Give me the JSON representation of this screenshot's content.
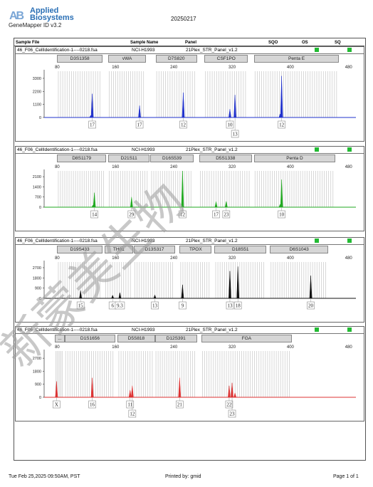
{
  "header": {
    "logo_line1": "Applied",
    "logo_line2": "Biosystems",
    "logo_mark": "AB",
    "app_name": "GeneMapper ID v3.2",
    "date": "20250217"
  },
  "columns": {
    "sample_file": "Sample File",
    "sample_name": "Sample Name",
    "panel": "Panel",
    "sqo": "SQO",
    "os": "OS",
    "sq": "SQ"
  },
  "info_rows": [
    {
      "file": "46_F06_CellIdentification-1----0218.fsa",
      "name": "NCI-H1993",
      "panel": "21Plex_STR_Panel_v1.2"
    },
    {
      "file": "46_F06_CellIdentification-1----0218.fsa",
      "name": "NCI-H1993",
      "panel": "21Plex_STR_Panel_v1.2"
    },
    {
      "file": "46_F06_CellIdentification-1----0218.fsa",
      "name": "NCI-H1993",
      "panel": "21Plex_STR_Panel_v1.2"
    },
    {
      "file": "46_F06_CellIdentification-1----0218.fsa",
      "name": "NCI-H1993",
      "panel": "21Plex_STR_Panel_v1.2"
    }
  ],
  "status_color": "#22bb33",
  "panels": [
    {
      "color": "#2233cc",
      "x_ticks": [
        "80",
        "160",
        "240",
        "320",
        "400",
        "480"
      ],
      "y_ticks": [
        "3300",
        "2200",
        "1100",
        "0"
      ],
      "ymax": 3900,
      "markers": [
        {
          "label": "D3S1358",
          "start": 80,
          "end": 140
        },
        {
          "label": "vWA",
          "start": 150,
          "end": 200
        },
        {
          "label": "D7S820",
          "start": 215,
          "end": 270
        },
        {
          "label": "CSF1PO",
          "start": 282,
          "end": 340
        },
        {
          "label": "Penta E",
          "start": 350,
          "end": 465
        }
      ],
      "peaks": [
        {
          "x": 128,
          "h": 2000
        },
        {
          "x": 126,
          "h": 180
        },
        {
          "x": 193,
          "h": 1000
        },
        {
          "x": 253,
          "h": 2100
        },
        {
          "x": 317,
          "h": 700
        },
        {
          "x": 324,
          "h": 1900
        },
        {
          "x": 388,
          "h": 3500
        },
        {
          "x": 386,
          "h": 300
        }
      ],
      "calls": [
        {
          "label": "17",
          "x": 128,
          "row": 0
        },
        {
          "label": "17",
          "x": 193,
          "row": 0
        },
        {
          "label": "12",
          "x": 253,
          "row": 0
        },
        {
          "label": "10",
          "x": 317,
          "row": 0
        },
        {
          "label": "13",
          "x": 324,
          "row": 1
        },
        {
          "label": "12",
          "x": 388,
          "row": 0
        }
      ]
    },
    {
      "color": "#22aa22",
      "x_ticks": [
        "80",
        "160",
        "240",
        "320",
        "400",
        "480"
      ],
      "y_ticks": [
        "2100",
        "1400",
        "700",
        "0"
      ],
      "ymax": 2500,
      "markers": [
        {
          "label": "D8S1179",
          "start": 80,
          "end": 145
        },
        {
          "label": "D21S11",
          "start": 150,
          "end": 205
        },
        {
          "label": "D16S539",
          "start": 208,
          "end": 265
        },
        {
          "label": "D5S1338",
          "start": 275,
          "end": 345
        },
        {
          "label": "Penta D",
          "start": 350,
          "end": 460
        }
      ],
      "peaks": [
        {
          "x": 131,
          "h": 1000
        },
        {
          "x": 129,
          "h": 150
        },
        {
          "x": 182,
          "h": 700
        },
        {
          "x": 252,
          "h": 2500
        },
        {
          "x": 298,
          "h": 380
        },
        {
          "x": 312,
          "h": 400
        },
        {
          "x": 388,
          "h": 1900
        },
        {
          "x": 386,
          "h": 200
        }
      ],
      "calls": [
        {
          "label": "14",
          "x": 131,
          "row": 0
        },
        {
          "label": "29",
          "x": 182,
          "row": 0
        },
        {
          "label": "12",
          "x": 252,
          "row": 0
        },
        {
          "label": "17",
          "x": 298,
          "row": 0
        },
        {
          "label": "23",
          "x": 312,
          "row": 0
        },
        {
          "label": "10",
          "x": 388,
          "row": 0
        }
      ]
    },
    {
      "color": "#111111",
      "x_ticks": [
        "80",
        "160",
        "240",
        "320",
        "400",
        "480"
      ],
      "y_ticks": [
        "2700",
        "1800",
        "900",
        "0"
      ],
      "ymax": 3200,
      "markers": [
        {
          "label": "D19S433",
          "start": 80,
          "end": 140
        },
        {
          "label": "TH01",
          "start": 145,
          "end": 182
        },
        {
          "label": "D13S317",
          "start": 185,
          "end": 240
        },
        {
          "label": "TPOX",
          "start": 248,
          "end": 290
        },
        {
          "label": "D18S51",
          "start": 296,
          "end": 365
        },
        {
          "label": "D6S1043",
          "start": 372,
          "end": 450
        }
      ],
      "peaks": [
        {
          "x": 112,
          "h": 680
        },
        {
          "x": 156,
          "h": 280
        },
        {
          "x": 166,
          "h": 500
        },
        {
          "x": 214,
          "h": 300
        },
        {
          "x": 252,
          "h": 1200
        },
        {
          "x": 317,
          "h": 2400
        },
        {
          "x": 328,
          "h": 2800
        },
        {
          "x": 428,
          "h": 2000
        }
      ],
      "calls": [
        {
          "label": "15",
          "x": 112,
          "row": 0
        },
        {
          "label": "6",
          "x": 156,
          "row": 0
        },
        {
          "label": "9.3",
          "x": 166,
          "row": 0
        },
        {
          "label": "13",
          "x": 214,
          "row": 0
        },
        {
          "label": "9",
          "x": 252,
          "row": 0
        },
        {
          "label": "13",
          "x": 317,
          "row": 0
        },
        {
          "label": "18",
          "x": 328,
          "row": 0
        },
        {
          "label": "20",
          "x": 428,
          "row": 0
        }
      ]
    },
    {
      "color": "#dd3333",
      "x_ticks": [
        "80",
        "160",
        "240",
        "320",
        "400",
        "480"
      ],
      "y_ticks": [
        "2700",
        "1800",
        "900",
        "0"
      ],
      "ymax": 3200,
      "markers": [
        {
          "label": "...",
          "start": 77,
          "end": 88
        },
        {
          "label": "D1S1656",
          "start": 90,
          "end": 158
        },
        {
          "label": "D5S818",
          "start": 163,
          "end": 212
        },
        {
          "label": "D12S391",
          "start": 214,
          "end": 270
        },
        {
          "label": "FGA",
          "start": 278,
          "end": 400
        }
      ],
      "peaks": [
        {
          "x": 79,
          "h": 1100
        },
        {
          "x": 128,
          "h": 1350
        },
        {
          "x": 180,
          "h": 500
        },
        {
          "x": 183,
          "h": 800
        },
        {
          "x": 248,
          "h": 1350
        },
        {
          "x": 316,
          "h": 800
        },
        {
          "x": 320,
          "h": 1000
        },
        {
          "x": 324,
          "h": 300
        }
      ],
      "calls": [
        {
          "label": "X",
          "x": 79,
          "row": 0
        },
        {
          "label": "16",
          "x": 128,
          "row": 0
        },
        {
          "label": "11",
          "x": 180,
          "row": 0
        },
        {
          "label": "12",
          "x": 183,
          "row": 1
        },
        {
          "label": "21",
          "x": 248,
          "row": 0
        },
        {
          "label": "22",
          "x": 316,
          "row": 0
        },
        {
          "label": "23",
          "x": 320,
          "row": 1
        }
      ]
    }
  ],
  "footer": {
    "timestamp": "Tue Feb 25,2025 09:50AM, PST",
    "printed_by": "Printed by: gmid",
    "page": "Page 1 of 1"
  },
  "watermark": "新蒙美生物"
}
